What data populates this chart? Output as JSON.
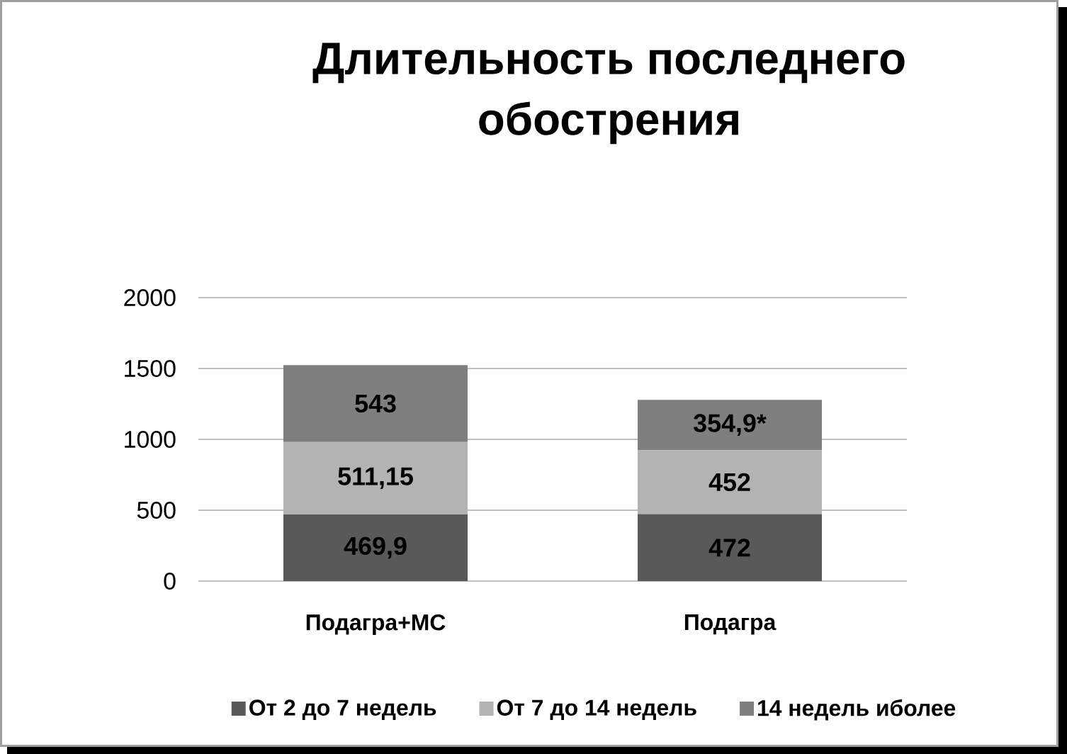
{
  "chart_data": {
    "type": "bar",
    "stacked": true,
    "title": "Длительность последнего обострения",
    "categories": [
      "Подагра+МС",
      "Подагра"
    ],
    "series": [
      {
        "name": "От 2 до 7 недель",
        "color": "#595959",
        "values": [
          469.9,
          472
        ],
        "value_labels": [
          "469,9",
          "472"
        ]
      },
      {
        "name": "От 7 до 14 недель",
        "color": "#b3b3b3",
        "values": [
          511.15,
          452
        ],
        "value_labels": [
          "511,15",
          "452"
        ]
      },
      {
        "name": "14 недель иболее",
        "color": "#7f7f7f",
        "values": [
          543,
          354.9
        ],
        "value_labels": [
          "543",
          "354,9*"
        ]
      }
    ],
    "ylim": [
      0,
      2000
    ],
    "yticks": [
      0,
      500,
      1000,
      1500,
      2000
    ],
    "grid": "y",
    "legend": "bottom"
  }
}
